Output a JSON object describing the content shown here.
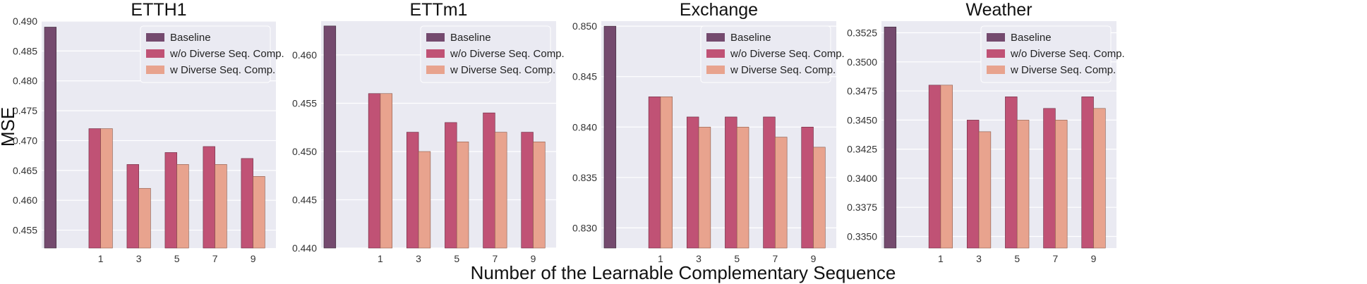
{
  "figure": {
    "ylabel": "MSE",
    "xlabel": "Number of the Learnable Complementary Sequence"
  },
  "legend": [
    "Baseline",
    "w/o Diverse Seq. Comp.",
    "w Diverse Seq. Comp."
  ],
  "colors": {
    "baseline": "#744a6e",
    "without": "#c05275",
    "with": "#e8a38e",
    "plot_bg": "#eaeaf2",
    "grid": "#ffffff"
  },
  "chart_data": [
    {
      "type": "bar",
      "title": "ETTH1",
      "legend_placement": "top-right",
      "grid": true,
      "categories": [
        "1",
        "3",
        "5",
        "7",
        "9"
      ],
      "baseline": 0.489,
      "series": [
        {
          "name": "w/o Diverse Seq. Comp.",
          "values": [
            0.472,
            0.466,
            0.468,
            0.469,
            0.467
          ]
        },
        {
          "name": "w Diverse Seq. Comp.",
          "values": [
            0.472,
            0.462,
            0.466,
            0.466,
            0.464
          ]
        }
      ],
      "ylim": [
        0.452,
        0.49
      ],
      "yticks": [
        "0.455",
        "0.460",
        "0.465",
        "0.470",
        "0.475",
        "0.480",
        "0.485",
        "0.490"
      ]
    },
    {
      "type": "bar",
      "title": "ETTm1",
      "legend_placement": "top-right",
      "grid": true,
      "categories": [
        "1",
        "3",
        "5",
        "7",
        "9"
      ],
      "baseline": 0.463,
      "series": [
        {
          "name": "w/o Diverse Seq. Comp.",
          "values": [
            0.456,
            0.452,
            0.453,
            0.454,
            0.452
          ]
        },
        {
          "name": "w Diverse Seq. Comp.",
          "values": [
            0.456,
            0.45,
            0.451,
            0.452,
            0.451
          ]
        }
      ],
      "ylim": [
        0.44,
        0.4635
      ],
      "yticks": [
        "0.440",
        "0.445",
        "0.450",
        "0.455",
        "0.460"
      ]
    },
    {
      "type": "bar",
      "title": "Exchange",
      "legend_placement": "top-right",
      "grid": true,
      "categories": [
        "1",
        "3",
        "5",
        "7",
        "9"
      ],
      "baseline": 0.85,
      "series": [
        {
          "name": "w/o Diverse Seq. Comp.",
          "values": [
            0.843,
            0.841,
            0.841,
            0.841,
            0.84
          ]
        },
        {
          "name": "w Diverse Seq. Comp.",
          "values": [
            0.843,
            0.84,
            0.84,
            0.839,
            0.838
          ]
        }
      ],
      "ylim": [
        0.828,
        0.8505
      ],
      "yticks": [
        "0.830",
        "0.835",
        "0.840",
        "0.845",
        "0.850"
      ]
    },
    {
      "type": "bar",
      "title": "Weather",
      "legend_placement": "top-right",
      "grid": true,
      "categories": [
        "1",
        "3",
        "5",
        "7",
        "9"
      ],
      "baseline": 0.353,
      "series": [
        {
          "name": "w/o Diverse Seq. Comp.",
          "values": [
            0.348,
            0.345,
            0.347,
            0.346,
            0.347
          ]
        },
        {
          "name": "w Diverse Seq. Comp.",
          "values": [
            0.348,
            0.344,
            0.345,
            0.345,
            0.346
          ]
        }
      ],
      "ylim": [
        0.334,
        0.3535
      ],
      "yticks": [
        "0.3350",
        "0.3375",
        "0.3400",
        "0.3425",
        "0.3450",
        "0.3475",
        "0.3500",
        "0.3525"
      ]
    }
  ]
}
